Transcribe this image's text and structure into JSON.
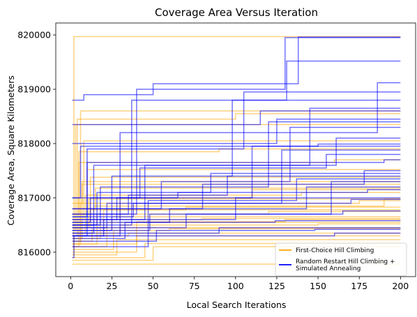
{
  "chart_data": {
    "type": "line",
    "title": "Coverage Area Versus Iteration",
    "xlabel": "Local Search Iterations",
    "ylabel": "Coverage Area, Square Kilometers",
    "xlim": [
      -9,
      210
    ],
    "ylim": [
      815550,
      820220
    ],
    "xticks": [
      0,
      25,
      50,
      75,
      100,
      125,
      150,
      175,
      200
    ],
    "yticks": [
      816000,
      817000,
      818000,
      819000,
      820000
    ],
    "grid": false,
    "legend_position": "bottom-right",
    "colors": {
      "First-Choice Hill Climbing": "#ffa500",
      "Random Restart Hill Climbing + Simulated Annealing": "#0000ff"
    },
    "legend": [
      "First-Choice Hill Climbing",
      "Random Restart Hill Climbing + Simulated Annealing"
    ],
    "series": [
      {
        "name": "First-Choice Hill Climbing",
        "runs": [
          {
            "start": 815950,
            "steps": [
              [
                2,
                819970
              ]
            ]
          },
          {
            "start": 816150,
            "steps": [
              [
                6,
                818600
              ]
            ]
          },
          {
            "start": 816300,
            "steps": [
              [
                4,
                818450
              ],
              [
                100,
                818550
              ]
            ]
          },
          {
            "start": 816400,
            "steps": [
              [
                3,
                818350
              ]
            ]
          },
          {
            "start": 816600,
            "steps": [
              [
                8,
                818050
              ]
            ]
          },
          {
            "start": 816100,
            "steps": [
              [
                5,
                817650
              ],
              [
                160,
                817700
              ]
            ]
          },
          {
            "start": 816700,
            "steps": [
              [
                10,
                817520
              ]
            ]
          },
          {
            "start": 816550,
            "steps": [
              [
                12,
                817380
              ]
            ]
          },
          {
            "start": 816250,
            "steps": [
              [
                7,
                817250
              ]
            ]
          },
          {
            "start": 816800,
            "steps": [
              [
                15,
                817180
              ]
            ]
          },
          {
            "start": 816350,
            "steps": [
              [
                9,
                817050
              ],
              [
                140,
                817100
              ]
            ]
          },
          {
            "start": 816450,
            "steps": [
              [
                11,
                816980
              ]
            ]
          },
          {
            "start": 816200,
            "steps": [
              [
                6,
                816900
              ],
              [
                175,
                816950
              ]
            ]
          },
          {
            "start": 816500,
            "steps": [
              [
                14,
                816850
              ],
              [
                190,
                816980
              ]
            ]
          },
          {
            "start": 816300,
            "steps": [
              [
                20,
                816780
              ]
            ]
          },
          {
            "start": 816150,
            "steps": [
              [
                16,
                816700
              ],
              [
                120,
                816750
              ]
            ]
          },
          {
            "start": 816400,
            "steps": [
              [
                25,
                816650
              ]
            ]
          },
          {
            "start": 816250,
            "steps": [
              [
                18,
                816600
              ],
              [
                80,
                816620
              ]
            ]
          },
          {
            "start": 816100,
            "steps": [
              [
                22,
                816550
              ]
            ]
          },
          {
            "start": 816350,
            "steps": [
              [
                30,
                816500
              ],
              [
                150,
                816520
              ]
            ]
          },
          {
            "start": 816200,
            "steps": [
              [
                13,
                816450
              ]
            ]
          },
          {
            "start": 816050,
            "steps": [
              [
                26,
                816400
              ],
              [
                60,
                816430
              ]
            ]
          },
          {
            "start": 816300,
            "steps": [
              [
                35,
                816350
              ]
            ]
          },
          {
            "start": 816000,
            "steps": [
              [
                40,
                816300
              ]
            ]
          },
          {
            "start": 815950,
            "steps": [
              [
                28,
                816230
              ]
            ]
          },
          {
            "start": 815900,
            "steps": [
              [
                45,
                816160
              ]
            ]
          },
          {
            "start": 815850,
            "steps": [
              [
                50,
                816100
              ]
            ]
          },
          {
            "start": 815780,
            "steps": []
          },
          {
            "start": 816700,
            "steps": [
              [
                5,
                817850
              ],
              [
                90,
                817900
              ]
            ]
          },
          {
            "start": 816900,
            "steps": [
              [
                7,
                817300
              ]
            ]
          },
          {
            "start": 816600,
            "steps": [
              [
                30,
                817000
              ],
              [
                110,
                817150
              ]
            ]
          },
          {
            "start": 816450,
            "steps": [
              [
                12,
                816780
              ],
              [
                70,
                816830
              ]
            ]
          },
          {
            "start": 816150,
            "steps": [
              [
                40,
                816560
              ],
              [
                130,
                816600
              ]
            ]
          }
        ]
      },
      {
        "name": "Random Restart Hill Climbing + Simulated Annealing",
        "runs": [
          {
            "start": 818800,
            "steps": [
              [
                8,
                818900
              ],
              [
                50,
                819100
              ],
              [
                138,
                819960
              ]
            ]
          },
          {
            "start": 816700,
            "steps": [
              [
                40,
                819000
              ],
              [
                130,
                819950
              ]
            ]
          },
          {
            "start": 816500,
            "steps": [
              [
                37,
                818800
              ],
              [
                131,
                819520
              ]
            ]
          },
          {
            "start": 816300,
            "steps": [
              [
                30,
                818200
              ],
              [
                186,
                819120
              ]
            ]
          },
          {
            "start": 816650,
            "steps": [
              [
                10,
                817900
              ],
              [
                105,
                818950
              ]
            ]
          },
          {
            "start": 816400,
            "steps": [
              [
                25,
                817400
              ],
              [
                98,
                818800
              ]
            ]
          },
          {
            "start": 816600,
            "steps": [
              [
                45,
                817600
              ],
              [
                145,
                818650
              ]
            ]
          },
          {
            "start": 816500,
            "steps": [
              [
                18,
                817200
              ],
              [
                120,
                818400
              ]
            ]
          },
          {
            "start": 816800,
            "steps": [
              [
                55,
                817300
              ],
              [
                133,
                818300
              ]
            ]
          },
          {
            "start": 816350,
            "steps": [
              [
                14,
                817600
              ],
              [
                161,
                818100
              ]
            ]
          },
          {
            "start": 816600,
            "steps": [
              [
                28,
                817000
              ],
              [
                110,
                817950
              ]
            ]
          },
          {
            "start": 816450,
            "steps": [
              [
                22,
                816900
              ],
              [
                128,
                817880
              ]
            ]
          },
          {
            "start": 816500,
            "steps": [
              [
                16,
                817100
              ],
              [
                85,
                817450
              ],
              [
                175,
                817450
              ]
            ]
          },
          {
            "start": 816700,
            "steps": [
              [
                35,
                817050
              ],
              [
                95,
                817400
              ]
            ]
          },
          {
            "start": 816400,
            "steps": [
              [
                48,
                816700
              ],
              [
                158,
                817300
              ]
            ]
          },
          {
            "start": 816550,
            "steps": [
              [
                60,
                816800
              ],
              [
                143,
                817200
              ]
            ]
          },
          {
            "start": 816300,
            "steps": [
              [
                20,
                816600
              ],
              [
                100,
                817000
              ]
            ]
          },
          {
            "start": 816650,
            "steps": [
              [
                38,
                816900
              ],
              [
                170,
                816970
              ]
            ]
          },
          {
            "start": 816450,
            "steps": [
              [
                70,
                816700
              ],
              [
                165,
                816760
              ]
            ]
          },
          {
            "start": 816250,
            "steps": [
              [
                33,
                816550
              ],
              [
                124,
                816580
              ]
            ]
          },
          {
            "start": 816350,
            "steps": [
              [
                90,
                816450
              ]
            ]
          },
          {
            "start": 816200,
            "steps": [
              [
                52,
                816400
              ],
              [
                148,
                816420
              ]
            ]
          },
          {
            "start": 815900,
            "steps": [
              [
                2,
                816300
              ],
              [
                160,
                816350
              ]
            ]
          },
          {
            "start": 817000,
            "steps": [
              [
                42,
                817550
              ],
              [
                155,
                817800
              ]
            ]
          },
          {
            "start": 816300,
            "steps": [
              [
                10,
                817650
              ],
              [
                190,
                817700
              ]
            ]
          },
          {
            "start": 816800,
            "steps": [
              [
                80,
                817250
              ],
              [
                178,
                817500
              ]
            ]
          },
          {
            "start": 816100,
            "steps": [
              [
                47,
                816950
              ],
              [
                137,
                817350
              ]
            ]
          },
          {
            "start": 818350,
            "steps": [
              [
                115,
                818600
              ]
            ]
          },
          {
            "start": 818000,
            "steps": [
              [
                125,
                818450
              ]
            ]
          },
          {
            "start": 817000,
            "steps": [
              [
                6,
                817950
              ],
              [
                150,
                817990
              ]
            ]
          },
          {
            "start": 816550,
            "steps": [
              [
                12,
                817000
              ],
              [
                65,
                817100
              ],
              [
                180,
                817150
              ]
            ]
          }
        ]
      }
    ]
  }
}
